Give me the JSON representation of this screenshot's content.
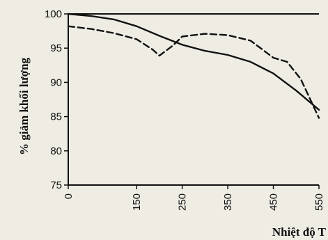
{
  "chart_data": {
    "type": "line",
    "title": "",
    "xlabel": "Nhiệt độ T",
    "ylabel": "% giảm khối lượng",
    "xlim": [
      0,
      550
    ],
    "ylim": [
      75,
      100
    ],
    "xticks": [
      0,
      150,
      250,
      350,
      450,
      550
    ],
    "xtick_labels": [
      "0",
      "150",
      "250",
      "350",
      "450",
      "550"
    ],
    "yticks": [
      75,
      80,
      85,
      90,
      95,
      100
    ],
    "ytick_labels": [
      "75",
      "80",
      "85",
      "90",
      "95",
      "100"
    ],
    "grid": false,
    "legend": "none",
    "series": [
      {
        "style": "solid",
        "color": "#111111",
        "x": [
          0,
          50,
          100,
          150,
          200,
          250,
          300,
          350,
          400,
          450,
          500,
          550
        ],
        "y": [
          100,
          99.7,
          99.2,
          98.2,
          96.8,
          95.5,
          94.6,
          94.0,
          93.0,
          91.3,
          88.8,
          86.0
        ]
      },
      {
        "style": "dashed",
        "color": "#111111",
        "x": [
          0,
          50,
          100,
          150,
          185,
          200,
          230,
          250,
          300,
          350,
          400,
          450,
          480,
          510,
          550
        ],
        "y": [
          98.2,
          97.8,
          97.2,
          96.3,
          94.8,
          93.9,
          95.4,
          96.7,
          97.1,
          96.9,
          96.1,
          93.6,
          93.0,
          90.5,
          84.8
        ]
      }
    ]
  }
}
